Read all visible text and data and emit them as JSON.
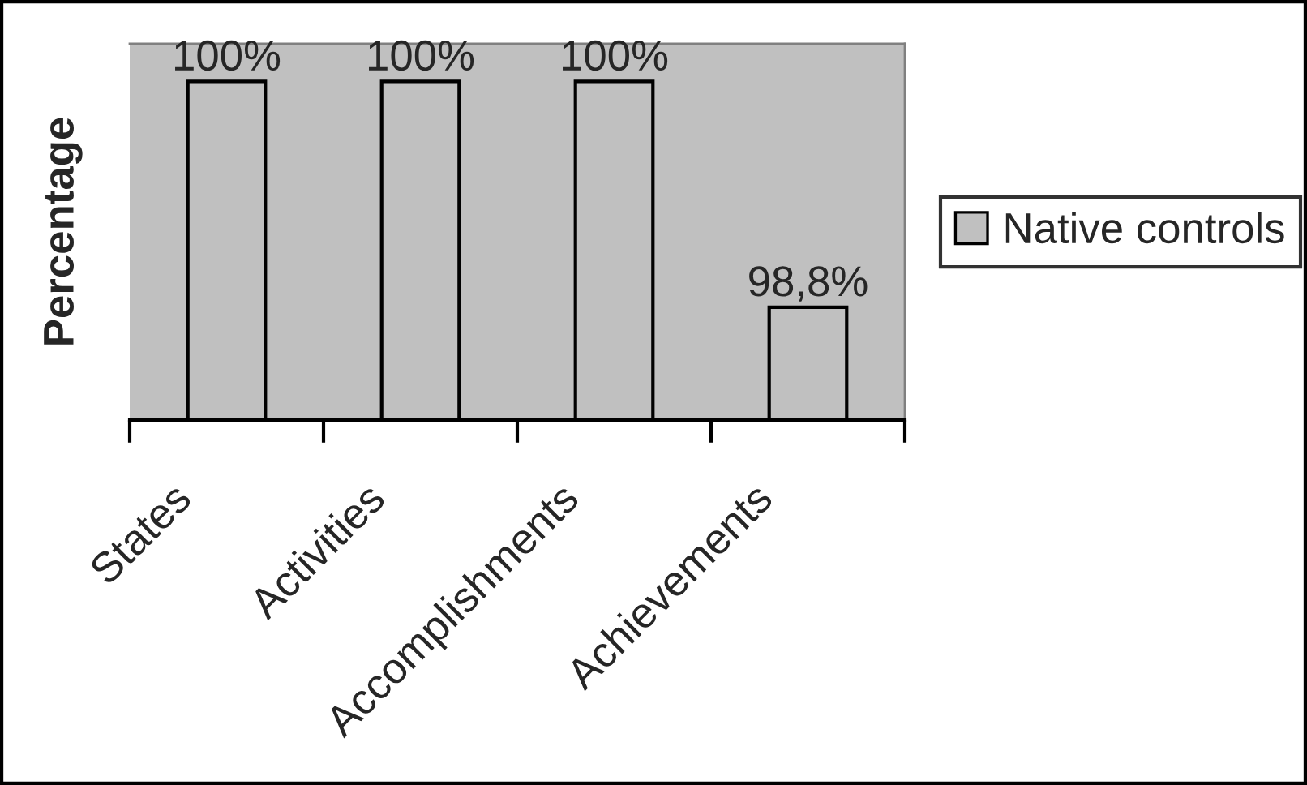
{
  "chart_data": {
    "type": "bar",
    "ylabel": "Percentage",
    "categories": [
      "States",
      "Activities",
      "Accomplishments",
      "Achievements"
    ],
    "series": [
      {
        "name": "Native controls",
        "color": "#c0c0c0",
        "values": [
          100,
          100,
          100,
          98.8
        ],
        "value_labels": [
          "100%",
          "100%",
          "100%",
          "98,8%"
        ]
      }
    ],
    "ylim": [
      98.2,
      100.2
    ],
    "tick_labels": "x",
    "legend": "right"
  }
}
